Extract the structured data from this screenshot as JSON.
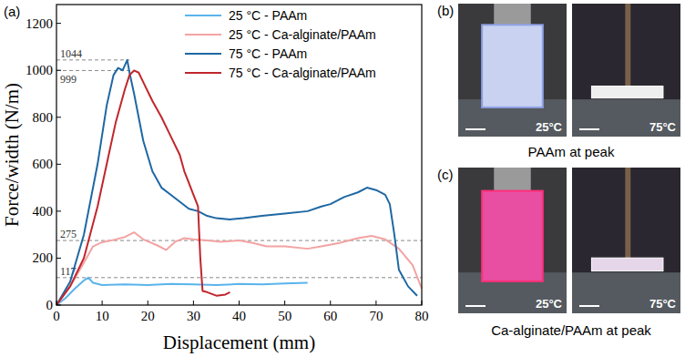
{
  "chart_data": {
    "type": "line",
    "title": "(a)",
    "x_label": "Displacement (mm)",
    "y_label": "Force/width (N/m)",
    "xlim": [
      0,
      80
    ],
    "ylim": [
      0,
      1280
    ],
    "xticks": [
      0,
      10,
      20,
      30,
      40,
      50,
      60,
      70,
      80
    ],
    "yticks": [
      0,
      200,
      400,
      600,
      800,
      1000,
      1200
    ],
    "legend": "upper center",
    "grid": false,
    "annotations": [
      {
        "y": 1044,
        "x": [
          0,
          16
        ]
      },
      {
        "y": 999,
        "x": [
          0,
          17
        ]
      },
      {
        "y": 275,
        "x": [
          0,
          80
        ]
      },
      {
        "y": 117,
        "x": [
          0,
          80
        ]
      }
    ],
    "series": [
      {
        "name": "25 °C - PAAm",
        "color": "#5ab4ec",
        "line_style": "solid",
        "x": [
          0,
          2,
          4,
          6,
          7,
          8,
          10,
          15,
          20,
          25,
          30,
          35,
          40,
          45,
          50,
          55
        ],
        "values": [
          0,
          30,
          70,
          105,
          117,
          95,
          85,
          88,
          85,
          90,
          88,
          85,
          90,
          88,
          92,
          95
        ]
      },
      {
        "name": "25 °C - Ca-alginate/PAAm",
        "color": "#f3a3a3",
        "line_style": "solid",
        "x": [
          0,
          3,
          6,
          8,
          10,
          12,
          15,
          17,
          19,
          22,
          24,
          26,
          28,
          30,
          33,
          36,
          40,
          43,
          46,
          50,
          55,
          58,
          62,
          66,
          69,
          72,
          75,
          78,
          80
        ],
        "values": [
          0,
          80,
          180,
          250,
          268,
          275,
          290,
          310,
          280,
          255,
          235,
          270,
          285,
          280,
          275,
          270,
          275,
          265,
          250,
          250,
          240,
          250,
          265,
          285,
          295,
          280,
          240,
          170,
          70
        ]
      },
      {
        "name": "75 °C - PAAm",
        "color": "#1f68a3",
        "line_style": "solid",
        "x": [
          0,
          3,
          6,
          9,
          11,
          12.5,
          13.5,
          14.5,
          15.5,
          16,
          17,
          19,
          21,
          23,
          25,
          27,
          29,
          31,
          33,
          35,
          38,
          41,
          45,
          50,
          55,
          58,
          60,
          63,
          66,
          68,
          70,
          72,
          73,
          74,
          75,
          77,
          79
        ],
        "values": [
          0,
          100,
          300,
          600,
          850,
          980,
          1010,
          1000,
          1044,
          990,
          900,
          700,
          570,
          500,
          470,
          440,
          410,
          400,
          380,
          370,
          365,
          370,
          380,
          390,
          400,
          420,
          430,
          460,
          480,
          500,
          490,
          470,
          430,
          300,
          150,
          80,
          40
        ]
      },
      {
        "name": "75 °C - Ca-alginate/PAAm",
        "color": "#c0262c",
        "line_style": "solid",
        "x": [
          0,
          3,
          6,
          9,
          11,
          13,
          15,
          16,
          17,
          18,
          19,
          21,
          23,
          25,
          27,
          28,
          29,
          30,
          31,
          31.5,
          32,
          33,
          35,
          37,
          38
        ],
        "values": [
          0,
          80,
          200,
          420,
          600,
          780,
          920,
          980,
          999,
          990,
          950,
          870,
          800,
          720,
          640,
          570,
          520,
          470,
          420,
          200,
          60,
          55,
          40,
          45,
          55
        ]
      }
    ]
  },
  "photos": [
    {
      "label": "(b)",
      "caption": "PAAm at peak",
      "images": [
        "25°C",
        "75°C"
      ]
    },
    {
      "label": "(c)",
      "caption": "Ca-alginate/PAAm at peak",
      "images": [
        "25°C",
        "75°C"
      ]
    }
  ]
}
